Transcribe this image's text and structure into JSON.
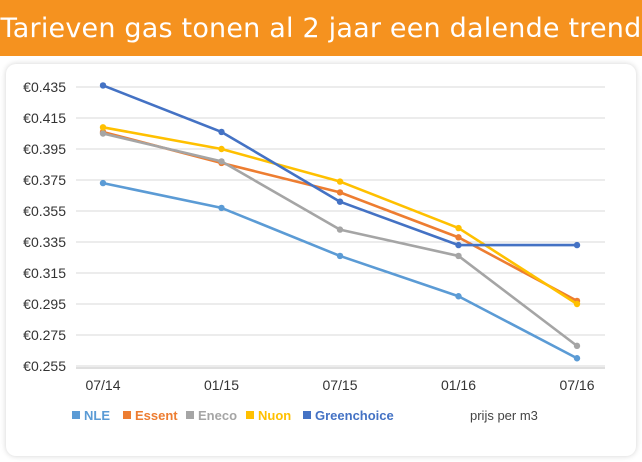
{
  "header": {
    "title": "Tarieven gas tonen al 2 jaar een dalende trend"
  },
  "chart_data": {
    "type": "line",
    "title": "Tarieven gas tonen al 2 jaar een dalende trend",
    "xlabel": "",
    "ylabel": "",
    "unit_note": "prijs per m3",
    "categories": [
      "07/14",
      "01/15",
      "07/15",
      "01/16",
      "07/16"
    ],
    "y_ticks": [
      "€0.435",
      "€0.415",
      "€0.395",
      "€0.375",
      "€0.355",
      "€0.335",
      "€0.315",
      "€0.295",
      "€0.275",
      "€0.255"
    ],
    "ylim": [
      0.255,
      0.435
    ],
    "grid": true,
    "legend_position": "bottom",
    "series": [
      {
        "name": "NLE",
        "color": "#5b9bd5",
        "values": [
          0.373,
          0.357,
          0.326,
          0.3,
          0.26
        ]
      },
      {
        "name": "Essent",
        "color": "#ed7d31",
        "values": [
          0.406,
          0.386,
          0.367,
          0.338,
          0.297
        ]
      },
      {
        "name": "Eneco",
        "color": "#a5a5a5",
        "values": [
          0.405,
          0.387,
          0.343,
          0.326,
          0.268
        ]
      },
      {
        "name": "Nuon",
        "color": "#ffc000",
        "values": [
          0.409,
          0.395,
          0.374,
          0.344,
          0.295
        ]
      },
      {
        "name": "Greenchoice",
        "color": "#4472c4",
        "values": [
          0.436,
          0.406,
          0.361,
          0.333,
          0.333
        ]
      }
    ]
  }
}
